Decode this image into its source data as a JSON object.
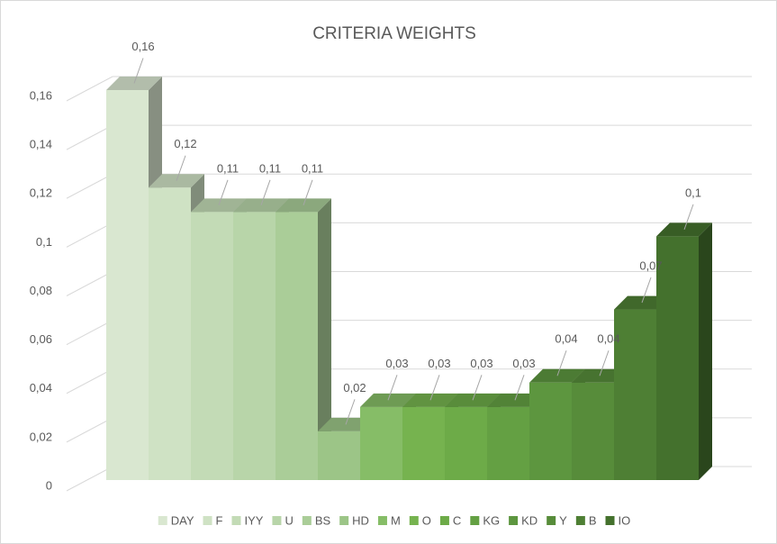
{
  "chart_data": {
    "type": "bar3d",
    "title": "CRITERIA WEIGHTS",
    "categories": [
      "DAY",
      "F",
      "IYY",
      "U",
      "BS",
      "HD",
      "M",
      "O",
      "C",
      "KG",
      "KD",
      "Y",
      "B",
      "IO"
    ],
    "values": [
      0.16,
      0.12,
      0.11,
      0.11,
      0.11,
      0.02,
      0.03,
      0.03,
      0.03,
      0.03,
      0.04,
      0.04,
      0.07,
      0.1
    ],
    "value_labels": [
      "0,16",
      "0,12",
      "0,11",
      "0,11",
      "0,11",
      "0,02",
      "0,03",
      "0,03",
      "0,03",
      "0,03",
      "0,04",
      "0,04",
      "0,07",
      "0,1"
    ],
    "colors": [
      "#d9e7d0",
      "#cfe2c4",
      "#c3dbb6",
      "#b8d5a9",
      "#aacd98",
      "#9cc587",
      "#86bd67",
      "#76b34f",
      "#6dab48",
      "#64a043",
      "#5d963f",
      "#578c3a",
      "#4e7f34",
      "#44712d"
    ],
    "ylim": [
      0,
      0.16
    ],
    "yticks": [
      0,
      {
        "value": 0.02,
        "label": "0,02"
      },
      {
        "value": 0.04,
        "label": "0,04"
      },
      {
        "value": 0.06,
        "label": "0,06"
      },
      {
        "value": 0.08,
        "label": "0,08"
      },
      {
        "value": 0.1,
        "label": "0,1"
      },
      {
        "value": 0.12,
        "label": "0,12"
      },
      {
        "value": 0.14,
        "label": "0,14"
      },
      {
        "value": 0.16,
        "label": "0,16"
      }
    ],
    "grid": true,
    "legend": "bottom"
  }
}
